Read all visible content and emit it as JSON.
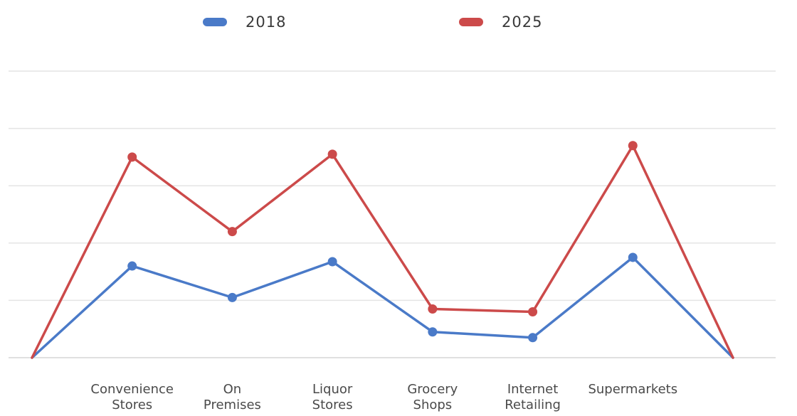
{
  "chart_data": {
    "type": "line",
    "categories": [
      "",
      "Convenience Stores",
      "On Premises",
      "Liquor Stores",
      "Grocery Shops",
      "Internet Retailing",
      "Supermarkets",
      ""
    ],
    "series": [
      {
        "name": "2018",
        "color": "#4a7ac8",
        "values": [
          0,
          32,
          21,
          33.5,
          9,
          7,
          35,
          0
        ]
      },
      {
        "name": "2025",
        "color": "#cc4a4a",
        "values": [
          0,
          70,
          44,
          71,
          17,
          16,
          74,
          0
        ]
      }
    ],
    "legend_position": "top",
    "ylim": [
      0,
      100
    ],
    "grid": true
  }
}
